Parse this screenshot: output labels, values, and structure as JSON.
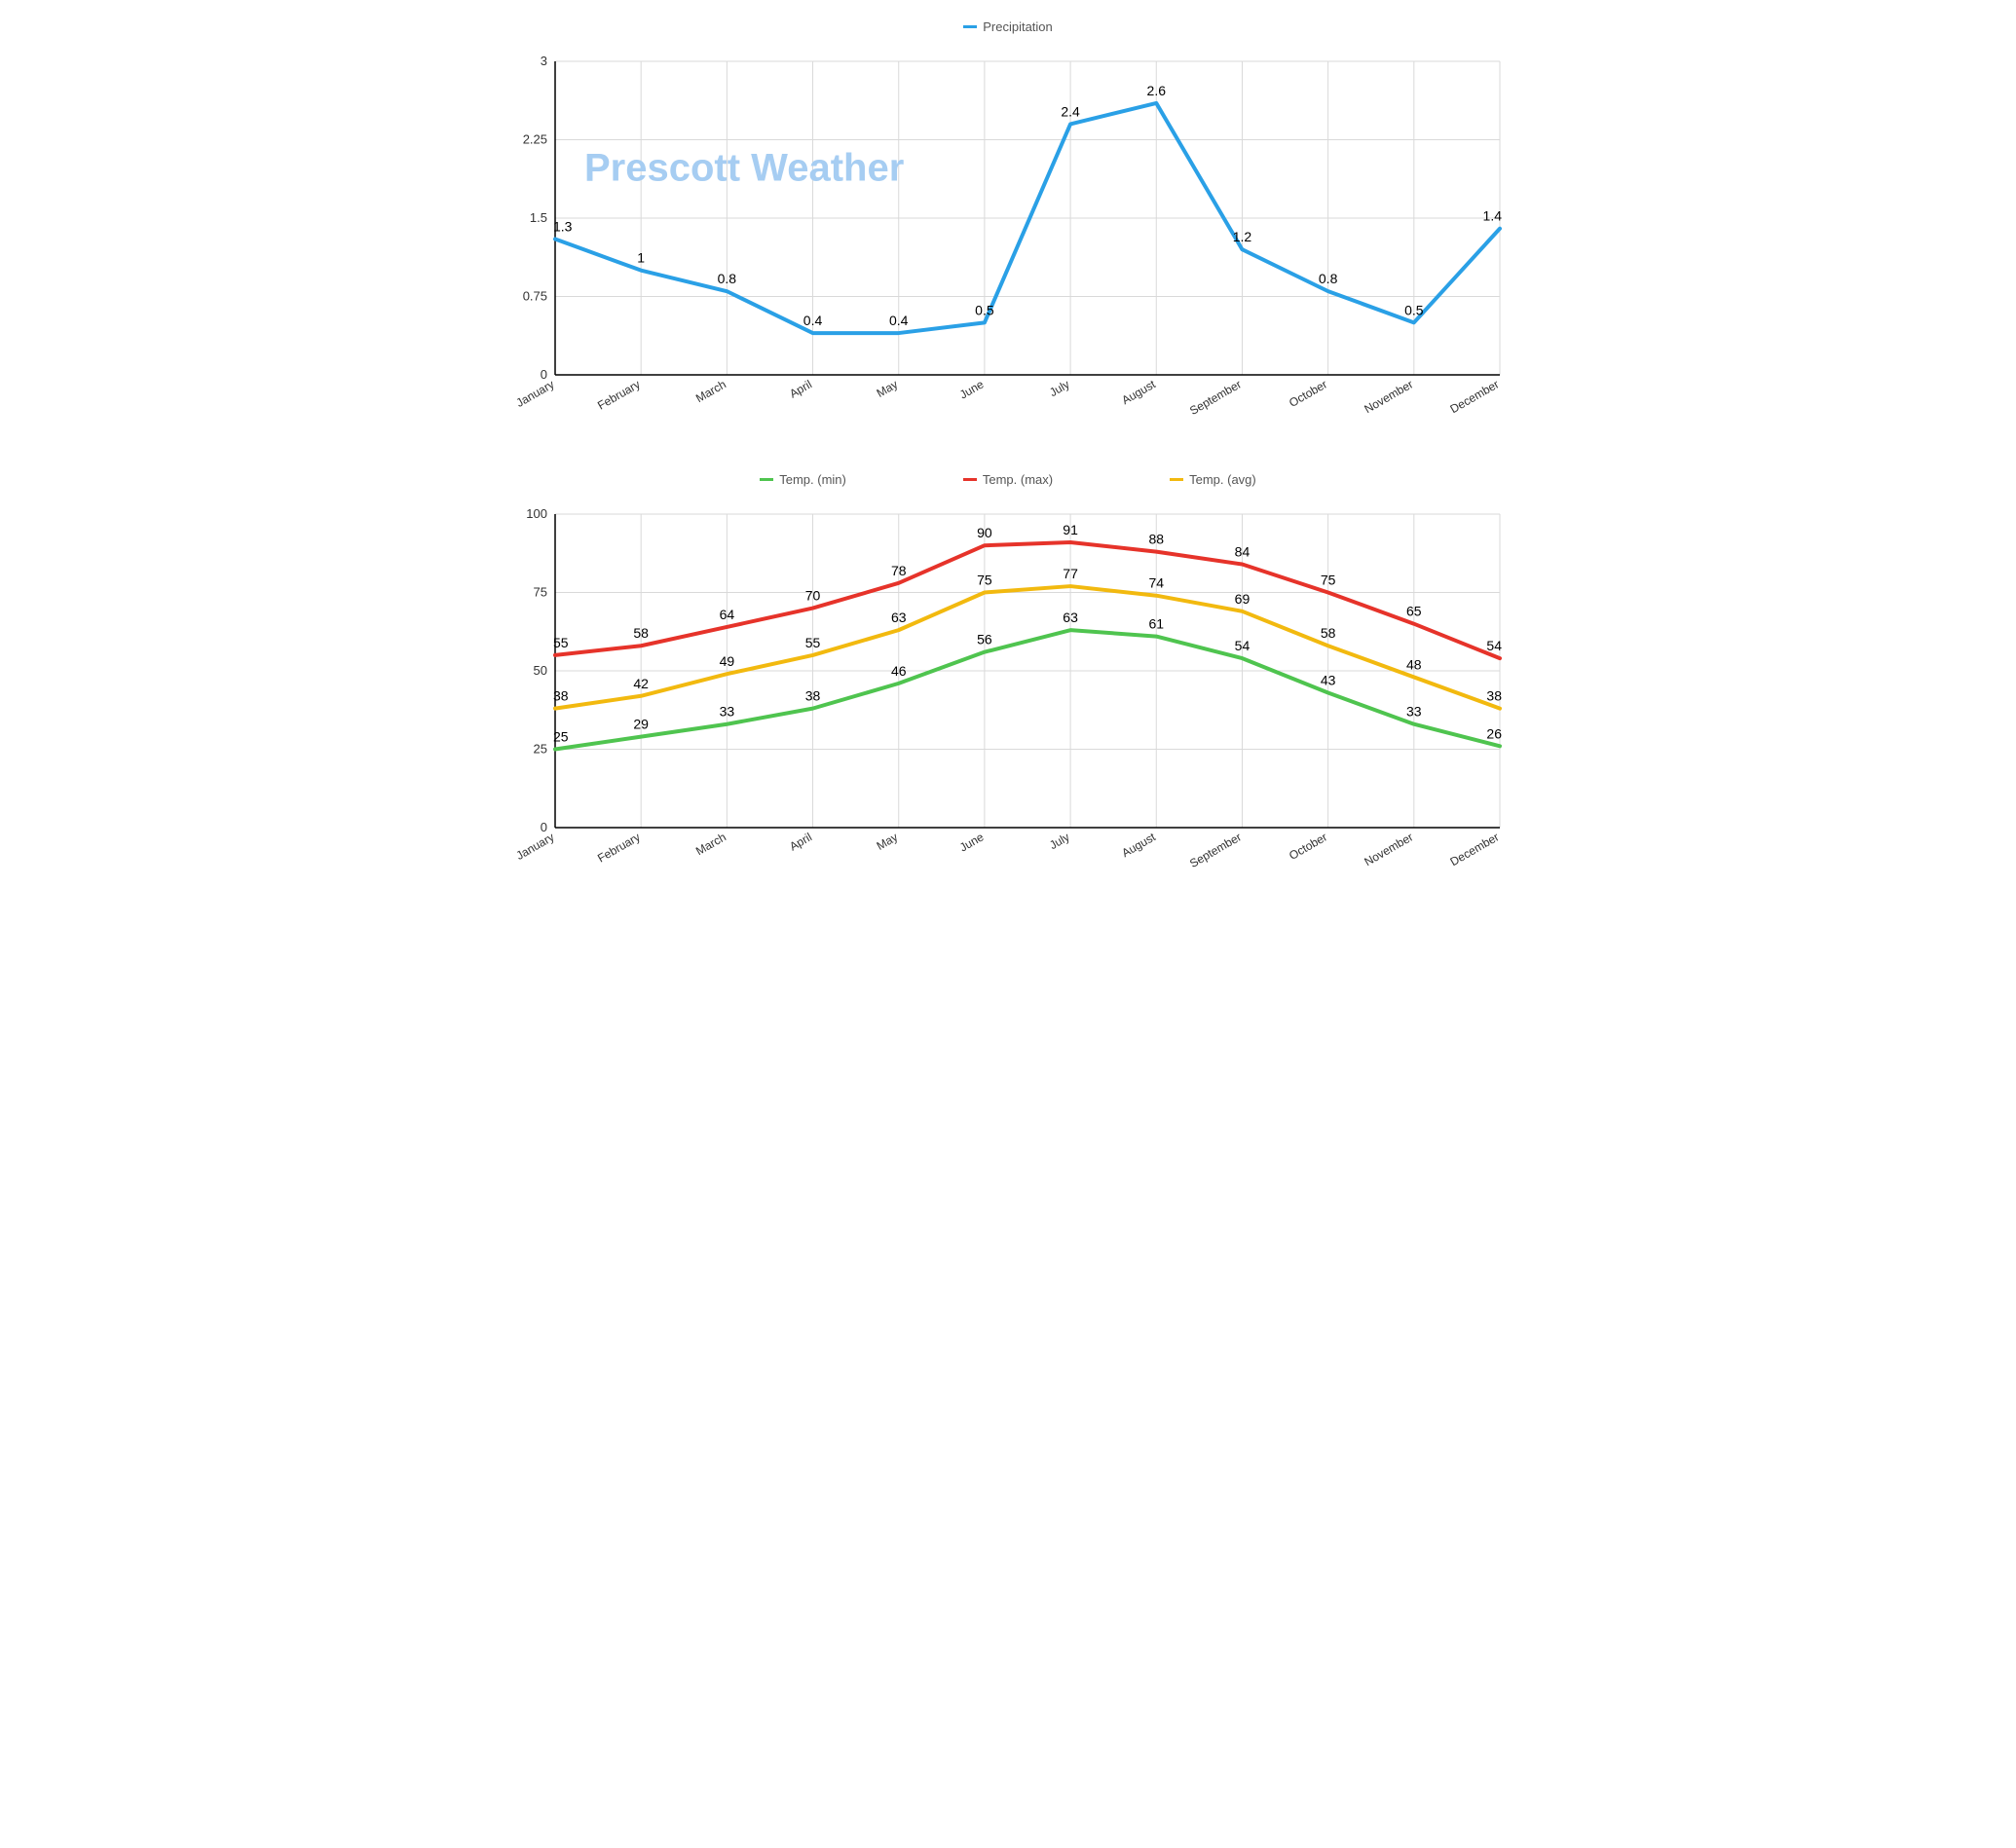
{
  "overlay_title": "Prescott Weather",
  "months": [
    "January",
    "February",
    "March",
    "April",
    "May",
    "June",
    "July",
    "August",
    "September",
    "October",
    "November",
    "December"
  ],
  "precip_chart": {
    "type": "line",
    "series": {
      "name": "Precipitation",
      "color": "#2aa0e6",
      "line_width": 4,
      "values": [
        1.3,
        1,
        0.8,
        0.4,
        0.4,
        0.5,
        2.4,
        2.6,
        1.2,
        0.8,
        0.5,
        1.4
      ]
    },
    "ylim": [
      0,
      3
    ],
    "ytick_step": 0.75,
    "grid_color": "#d9d9d9",
    "background_color": "#ffffff",
    "label_fontsize": 14,
    "tick_fontsize": 13
  },
  "temp_chart": {
    "type": "line",
    "series": [
      {
        "name": "Temp. (min)",
        "color": "#4fc44f",
        "line_width": 4,
        "values": [
          25,
          29,
          33,
          38,
          46,
          56,
          63,
          61,
          54,
          43,
          33,
          26
        ]
      },
      {
        "name": "Temp. (max)",
        "color": "#e6332a",
        "line_width": 4,
        "values": [
          55,
          58,
          64,
          70,
          78,
          90,
          91,
          88,
          84,
          75,
          65,
          54
        ]
      },
      {
        "name": "Temp. (avg)",
        "color": "#f2b90f",
        "line_width": 4,
        "values": [
          38,
          42,
          49,
          55,
          63,
          75,
          77,
          74,
          69,
          58,
          48,
          38
        ]
      }
    ],
    "ylim": [
      0,
      100
    ],
    "ytick_step": 25,
    "grid_color": "#d9d9d9",
    "background_color": "#ffffff",
    "label_fontsize": 14,
    "tick_fontsize": 13
  }
}
